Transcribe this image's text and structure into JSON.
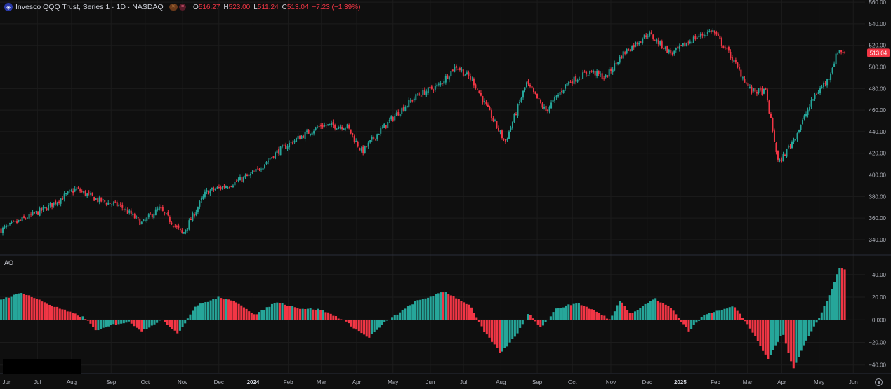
{
  "legend": {
    "title": "Invesco QQQ Trust, Series 1 · 1D · NASDAQ",
    "open_label": "O",
    "open": "516.27",
    "high_label": "H",
    "high": "523.00",
    "low_label": "L",
    "low": "511.24",
    "close_label": "C",
    "close": "513.04",
    "change": "−7.23 (−1.39%)"
  },
  "indicator_label": "AO",
  "chart_data": [
    {
      "type": "candlestick",
      "y_ticks": [
        340,
        360,
        380,
        400,
        420,
        440,
        460,
        480,
        500,
        520,
        540,
        560
      ],
      "y_tick_labels": [
        "340.00",
        "360.00",
        "380.00",
        "400.00",
        "420.00",
        "440.00",
        "460.00",
        "480.00",
        "500.00",
        "520.00",
        "540.00",
        "560.00"
      ],
      "ylim": [
        327,
        562
      ],
      "last_price": 513.04,
      "last_price_label": "513.04",
      "up_color": "#26a69a",
      "down_color": "#f23645",
      "anchors": [
        {
          "t": 0.0,
          "p": 349
        },
        {
          "t": 2.0,
          "p": 368
        },
        {
          "t": 3.5,
          "p": 387
        },
        {
          "t": 4.5,
          "p": 377
        },
        {
          "t": 5.6,
          "p": 371
        },
        {
          "t": 6.6,
          "p": 355
        },
        {
          "t": 7.4,
          "p": 369
        },
        {
          "t": 8.5,
          "p": 345
        },
        {
          "t": 9.6,
          "p": 384
        },
        {
          "t": 10.7,
          "p": 391
        },
        {
          "t": 11.8,
          "p": 401
        },
        {
          "t": 12.9,
          "p": 421
        },
        {
          "t": 13.9,
          "p": 434
        },
        {
          "t": 15.0,
          "p": 446
        },
        {
          "t": 16.2,
          "p": 445
        },
        {
          "t": 16.9,
          "p": 421
        },
        {
          "t": 17.7,
          "p": 440
        },
        {
          "t": 18.6,
          "p": 458
        },
        {
          "t": 19.5,
          "p": 474
        },
        {
          "t": 20.5,
          "p": 483
        },
        {
          "t": 21.3,
          "p": 501
        },
        {
          "t": 22.1,
          "p": 487
        },
        {
          "t": 22.8,
          "p": 460
        },
        {
          "t": 23.6,
          "p": 430
        },
        {
          "t": 24.6,
          "p": 485
        },
        {
          "t": 25.5,
          "p": 459
        },
        {
          "t": 26.5,
          "p": 485
        },
        {
          "t": 27.6,
          "p": 496
        },
        {
          "t": 28.3,
          "p": 490
        },
        {
          "t": 29.1,
          "p": 512
        },
        {
          "t": 30.3,
          "p": 531
        },
        {
          "t": 31.4,
          "p": 512
        },
        {
          "t": 32.4,
          "p": 526
        },
        {
          "t": 33.3,
          "p": 534
        },
        {
          "t": 34.1,
          "p": 512
        },
        {
          "t": 35.1,
          "p": 478
        },
        {
          "t": 35.8,
          "p": 477
        },
        {
          "t": 36.4,
          "p": 410
        },
        {
          "t": 37.2,
          "p": 436
        },
        {
          "t": 38.1,
          "p": 474
        },
        {
          "t": 38.7,
          "p": 488
        },
        {
          "t": 39.2,
          "p": 516
        },
        {
          "t": 39.5,
          "p": 513
        }
      ]
    },
    {
      "type": "histogram",
      "series": [
        {
          "name": "AO"
        }
      ],
      "y_ticks": [
        -40,
        -20,
        0,
        20,
        40
      ],
      "y_tick_labels": [
        "−40.00",
        "−20.00",
        "0.000",
        "20.00",
        "40.00"
      ],
      "ylim": [
        -47,
        56
      ],
      "up_color": "#26a69a",
      "down_color": "#f23645",
      "anchors": [
        {
          "t": 0.0,
          "v": 18
        },
        {
          "t": 1.0,
          "v": 24
        },
        {
          "t": 2.2,
          "v": 14
        },
        {
          "t": 3.3,
          "v": 6
        },
        {
          "t": 3.9,
          "v": 2
        },
        {
          "t": 4.5,
          "v": -10
        },
        {
          "t": 5.3,
          "v": -4
        },
        {
          "t": 6.0,
          "v": -2
        },
        {
          "t": 6.6,
          "v": -10
        },
        {
          "t": 7.5,
          "v": 0
        },
        {
          "t": 8.3,
          "v": -12
        },
        {
          "t": 9.1,
          "v": 12
        },
        {
          "t": 10.2,
          "v": 20
        },
        {
          "t": 11.2,
          "v": 14
        },
        {
          "t": 11.9,
          "v": 4
        },
        {
          "t": 12.9,
          "v": 16
        },
        {
          "t": 14.0,
          "v": 10
        },
        {
          "t": 15.0,
          "v": 9
        },
        {
          "t": 16.0,
          "v": 0
        },
        {
          "t": 17.2,
          "v": -16
        },
        {
          "t": 18.0,
          "v": -2
        },
        {
          "t": 19.4,
          "v": 16
        },
        {
          "t": 20.8,
          "v": 25
        },
        {
          "t": 22.0,
          "v": 12
        },
        {
          "t": 22.6,
          "v": -10
        },
        {
          "t": 23.4,
          "v": -30
        },
        {
          "t": 24.1,
          "v": -14
        },
        {
          "t": 24.7,
          "v": 6
        },
        {
          "t": 25.3,
          "v": -7
        },
        {
          "t": 26.0,
          "v": 10
        },
        {
          "t": 27.0,
          "v": 15
        },
        {
          "t": 28.0,
          "v": 6
        },
        {
          "t": 28.5,
          "v": 0
        },
        {
          "t": 29.0,
          "v": 18
        },
        {
          "t": 29.5,
          "v": 5
        },
        {
          "t": 30.6,
          "v": 19
        },
        {
          "t": 31.4,
          "v": 10
        },
        {
          "t": 32.2,
          "v": -10
        },
        {
          "t": 32.9,
          "v": 4
        },
        {
          "t": 33.5,
          "v": 8
        },
        {
          "t": 34.3,
          "v": 12
        },
        {
          "t": 35.0,
          "v": -5
        },
        {
          "t": 35.9,
          "v": -35
        },
        {
          "t": 36.6,
          "v": -12
        },
        {
          "t": 37.1,
          "v": -43
        },
        {
          "t": 37.6,
          "v": -22
        },
        {
          "t": 38.3,
          "v": 2
        },
        {
          "t": 38.8,
          "v": 22
        },
        {
          "t": 39.25,
          "v": 46
        },
        {
          "t": 39.5,
          "v": 44
        }
      ]
    }
  ],
  "x_axis": {
    "labels": [
      {
        "t": 0.0,
        "text": "Jun"
      },
      {
        "t": 1.7,
        "text": "Jul"
      },
      {
        "t": 3.3,
        "text": "Aug"
      },
      {
        "t": 5.15,
        "text": "Sep"
      },
      {
        "t": 6.75,
        "text": "Oct"
      },
      {
        "t": 8.5,
        "text": "Nov"
      },
      {
        "t": 10.2,
        "text": "Dec"
      },
      {
        "t": 11.8,
        "text": "2024",
        "bold": true
      },
      {
        "t": 13.45,
        "text": "Feb"
      },
      {
        "t": 15.0,
        "text": "Mar"
      },
      {
        "t": 16.65,
        "text": "Apr"
      },
      {
        "t": 18.35,
        "text": "May"
      },
      {
        "t": 20.1,
        "text": "Jun"
      },
      {
        "t": 21.65,
        "text": "Jul"
      },
      {
        "t": 23.4,
        "text": "Aug"
      },
      {
        "t": 25.1,
        "text": "Sep"
      },
      {
        "t": 26.75,
        "text": "Oct"
      },
      {
        "t": 28.55,
        "text": "Nov"
      },
      {
        "t": 30.25,
        "text": "Dec"
      },
      {
        "t": 31.8,
        "text": "2025",
        "bold": true
      },
      {
        "t": 33.45,
        "text": "Feb"
      },
      {
        "t": 34.95,
        "text": "Mar"
      },
      {
        "t": 36.55,
        "text": "Apr"
      },
      {
        "t": 38.3,
        "text": "May"
      },
      {
        "t": 39.9,
        "text": "Jun"
      }
    ]
  },
  "colors": {
    "background": "#0f0f0f",
    "grid": "#1c1c1c",
    "axis_text": "#b2b5be",
    "price_tag": "#f23645"
  }
}
